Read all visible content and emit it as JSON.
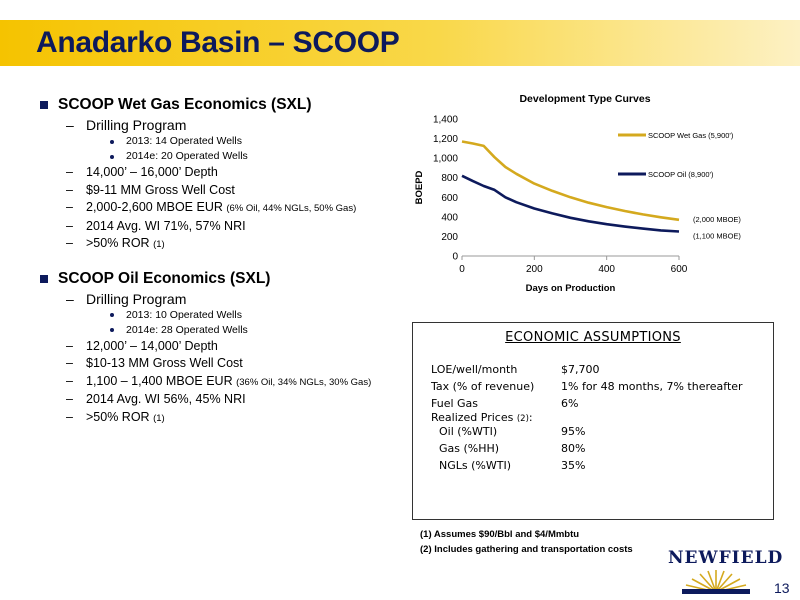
{
  "header": {
    "title": "Anadarko Basin – SCOOP"
  },
  "wet_gas": {
    "heading": "SCOOP Wet Gas Economics (SXL)",
    "drilling_label": "Drilling Program",
    "program": [
      "2013: 14 Operated Wells",
      "2014e: 20 Operated Wells"
    ],
    "items": [
      {
        "text": "14,000’ – 16,000’ Depth",
        "small": ""
      },
      {
        "text": "$9-11 MM Gross Well Cost",
        "small": ""
      },
      {
        "text": "2,000-2,600 MBOE EUR",
        "small": "(6% Oil, 44% NGLs, 50% Gas)"
      },
      {
        "text": "2014 Avg. WI 71%, 57% NRI",
        "small": ""
      },
      {
        "text": ">50% ROR",
        "small": "(1)"
      }
    ]
  },
  "oil": {
    "heading": "SCOOP Oil Economics (SXL)",
    "drilling_label": "Drilling Program",
    "program": [
      "2013:   10 Operated Wells",
      "2014e: 28 Operated Wells"
    ],
    "items": [
      {
        "text": "12,000’ – 14,000’ Depth",
        "small": ""
      },
      {
        "text": "$10-13 MM Gross Well Cost",
        "small": ""
      },
      {
        "text": "1,100 – 1,400 MBOE EUR",
        "small": "(36% Oil, 34% NGLs, 30% Gas)"
      },
      {
        "text": "2014 Avg. WI 56%, 45% NRI",
        "small": ""
      },
      {
        "text": ">50% ROR",
        "small": "(1)"
      }
    ]
  },
  "chart_data": {
    "type": "line",
    "title": "Development Type Curves",
    "xlabel": "Days on Production",
    "ylabel": "BOEPD",
    "xlim": [
      0,
      600
    ],
    "ylim": [
      0,
      1400
    ],
    "xticks": [
      "0",
      "200",
      "400",
      "600"
    ],
    "yticks": [
      "0",
      "200",
      "400",
      "600",
      "800",
      "1,000",
      "1,200",
      "1,400"
    ],
    "legend_position": "right",
    "series": [
      {
        "name": "SCOOP Wet Gas (5,900')",
        "color": "#d4a91e",
        "x": [
          0,
          30,
          60,
          90,
          120,
          150,
          200,
          250,
          300,
          350,
          400,
          450,
          500,
          550,
          600
        ],
        "y": [
          1170,
          1150,
          1125,
          1010,
          910,
          840,
          740,
          665,
          600,
          545,
          500,
          460,
          425,
          395,
          370
        ],
        "end_label": "(2,000 MBOE)"
      },
      {
        "name": "SCOOP Oil (8,900')",
        "color": "#0d1a5c",
        "x": [
          0,
          30,
          60,
          90,
          120,
          150,
          200,
          250,
          300,
          350,
          400,
          450,
          500,
          550,
          600
        ],
        "y": [
          820,
          765,
          715,
          675,
          600,
          550,
          485,
          435,
          390,
          355,
          325,
          300,
          280,
          262,
          250
        ],
        "end_label": "(1,100 MBOE)"
      }
    ]
  },
  "assumptions": {
    "heading": "ECONOMIC ASSUMPTIONS",
    "rows": [
      {
        "label": "LOE/well/month",
        "value": "$7,700"
      },
      {
        "label": "Tax (% of revenue)",
        "value": "1% for 48 months, 7% thereafter"
      },
      {
        "label": "Fuel Gas",
        "value": "6%"
      },
      {
        "label": "Realized  Prices",
        "value": ""
      },
      {
        "label": "Oil (%WTI)",
        "value": "95%"
      },
      {
        "label": "Gas (%HH)",
        "value": "80%"
      },
      {
        "label": "NGLs (%WTI)",
        "value": "35%"
      }
    ],
    "prices_note": "(2)"
  },
  "footnotes": [
    "(1) Assumes $90/Bbl and $4/Mmbtu",
    "(2) Includes gathering and transportation costs"
  ],
  "logo": {
    "text": "NEWFIELD"
  },
  "page_number": "13",
  "colors": {
    "title": "#0d1a5c",
    "banner": "#f5c300"
  }
}
